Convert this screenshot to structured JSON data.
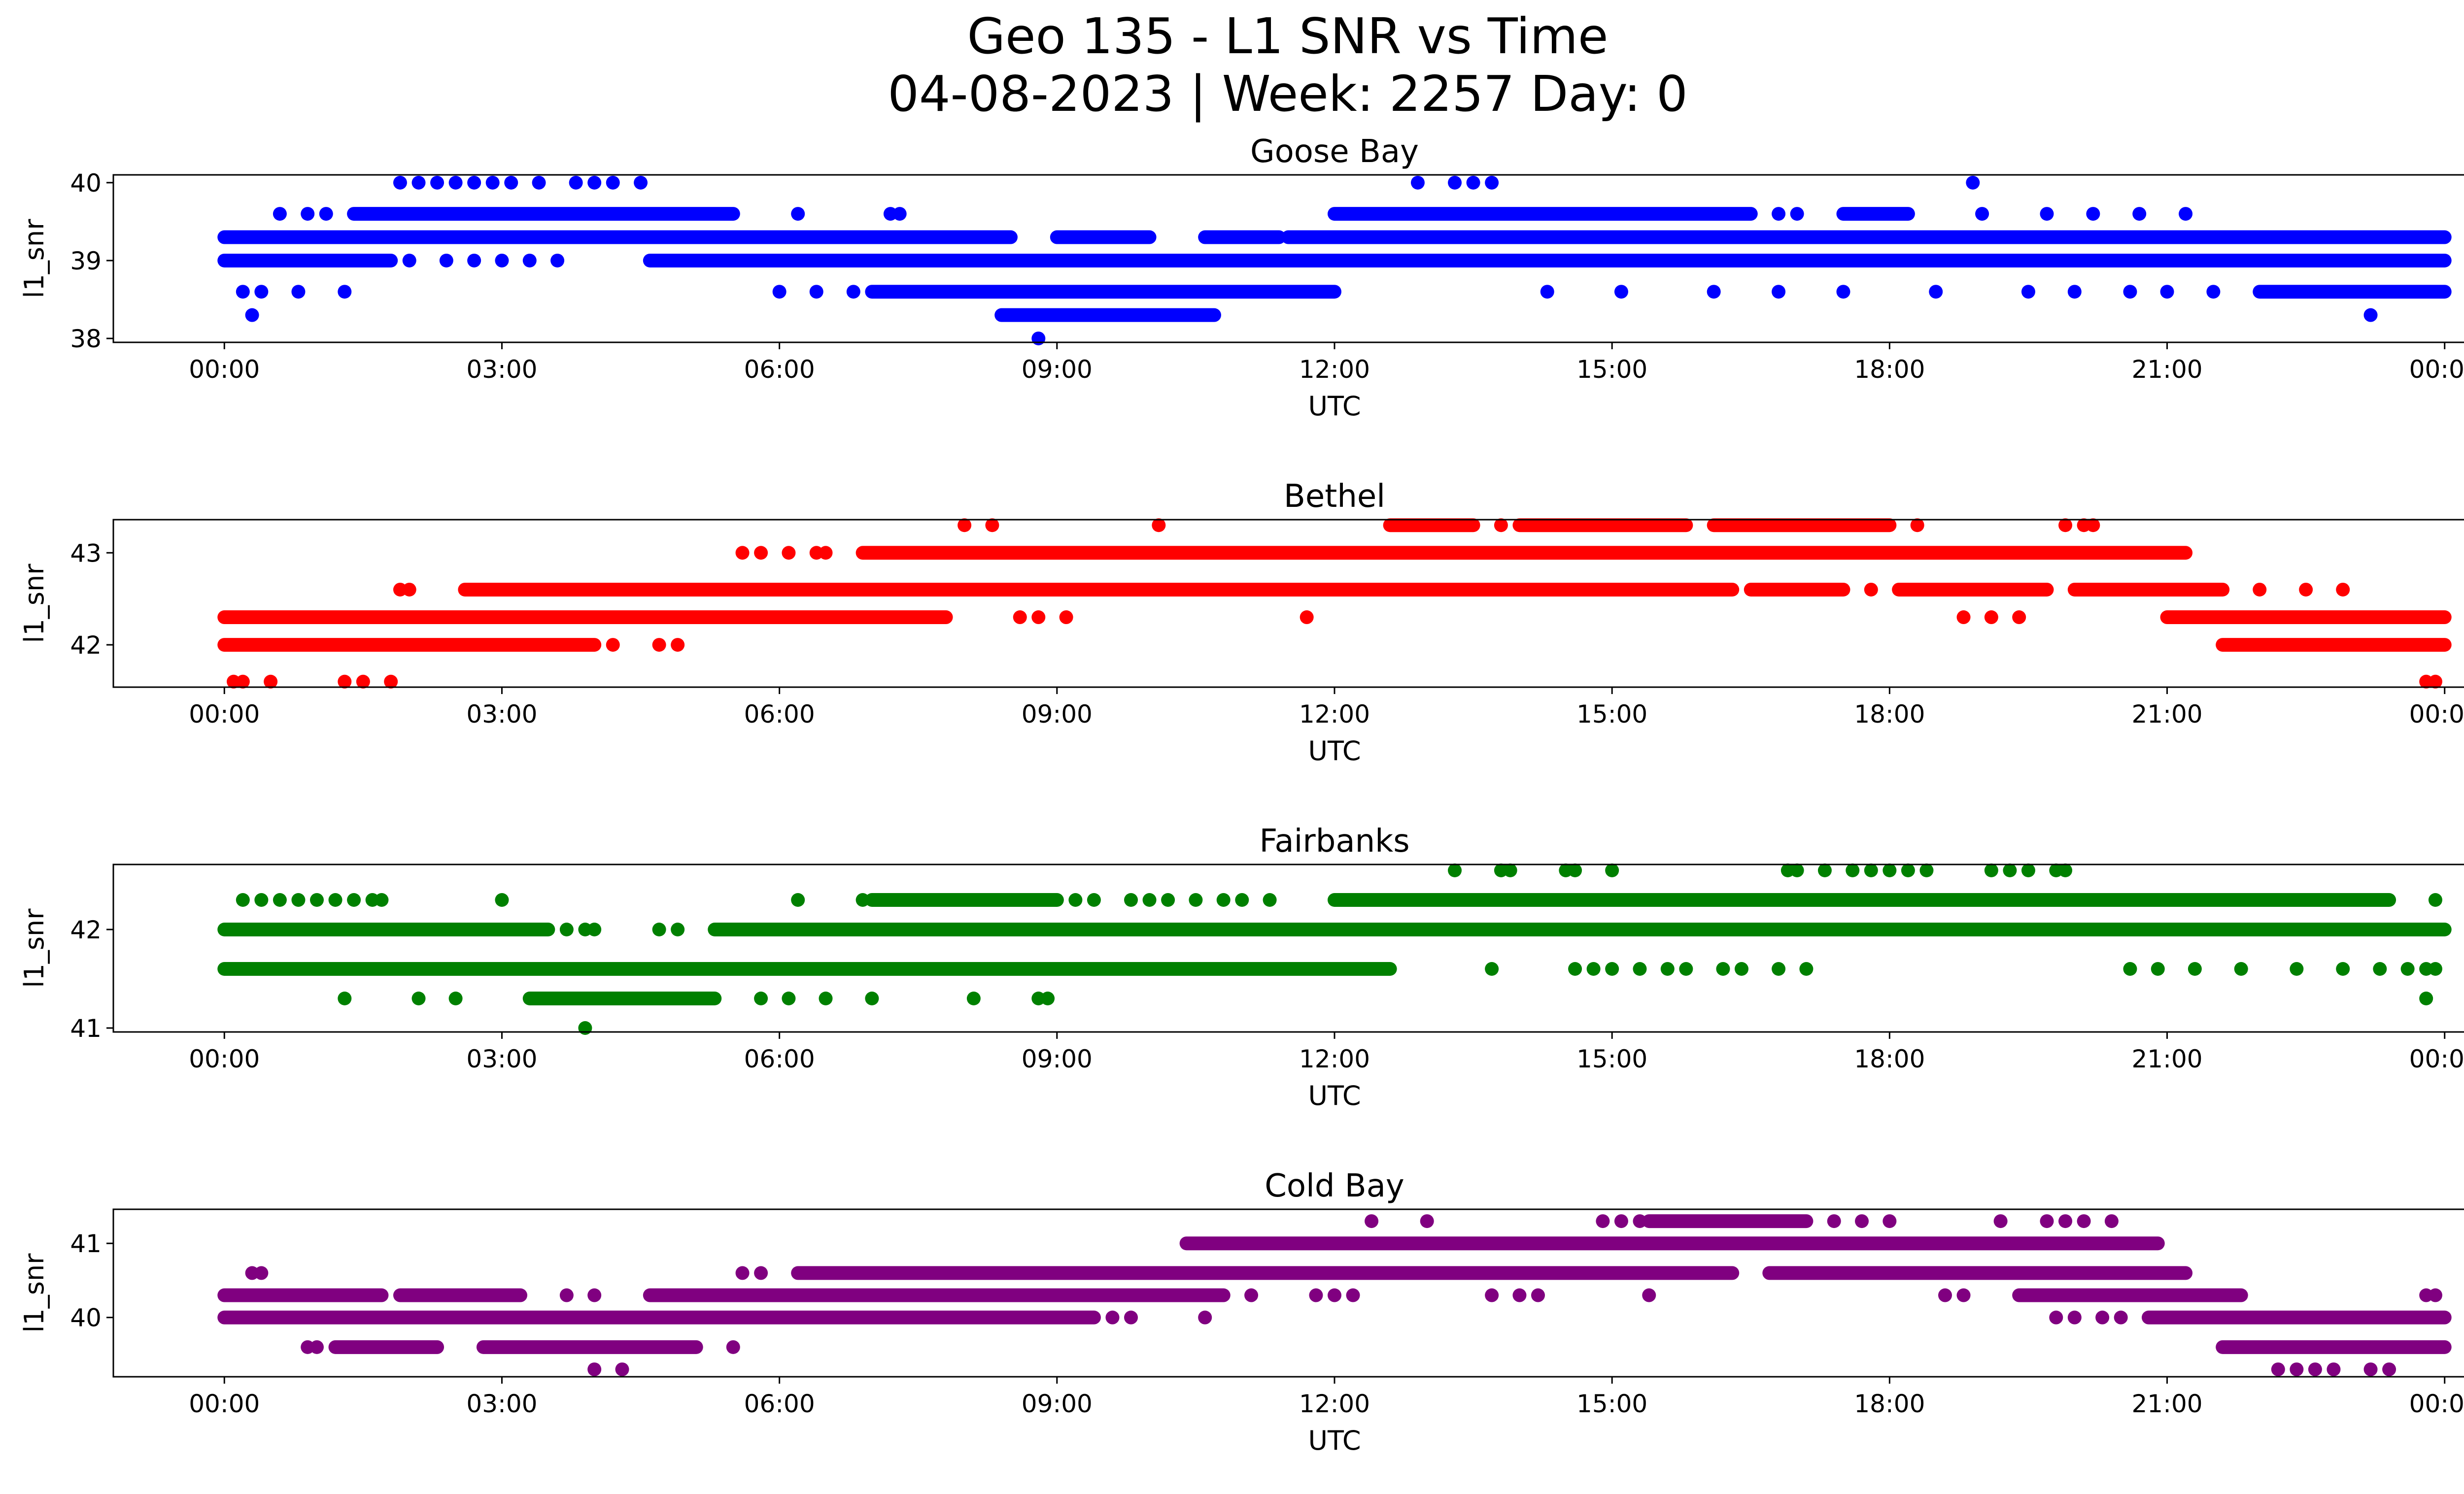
{
  "figure": {
    "title_line1": "Geo 135 - L1 SNR vs Time",
    "title_line2": "04-08-2023 | Week: 2257 Day: 0"
  },
  "chart_data": [
    {
      "type": "scatter",
      "title": "Goose Bay",
      "xlabel": "UTC",
      "ylabel": "l1_snr",
      "color": "#0000ff",
      "xlim": [
        -1.2,
        25.2
      ],
      "ylim": [
        37.95,
        40.1
      ],
      "yticks": [
        38,
        39,
        40
      ],
      "xticks": [
        0,
        3,
        6,
        9,
        12,
        15,
        18,
        21,
        24
      ],
      "xticklabels": [
        "00:00",
        "03:00",
        "06:00",
        "09:00",
        "12:00",
        "15:00",
        "18:00",
        "21:00",
        "00:00"
      ],
      "bands": [
        {
          "y": 39.3,
          "segments": [
            [
              0,
              8.5
            ],
            [
              9.0,
              10.0
            ],
            [
              10.6,
              11.4
            ],
            [
              11.5,
              24
            ]
          ]
        },
        {
          "y": 39.0,
          "segments": [
            [
              0,
              1.8
            ],
            [
              4.6,
              24
            ]
          ]
        },
        {
          "y": 38.6,
          "segments": [
            [
              7.0,
              12.0
            ],
            [
              22.0,
              24
            ]
          ]
        },
        {
          "y": 39.6,
          "segments": [
            [
              1.4,
              5.5
            ],
            [
              12.0,
              16.5
            ],
            [
              17.5,
              18.2
            ]
          ]
        },
        {
          "y": 38.3,
          "segments": [
            [
              8.4,
              10.7
            ]
          ]
        }
      ],
      "points": [
        [
          0.3,
          38.3
        ],
        [
          0.2,
          38.6
        ],
        [
          0.4,
          38.6
        ],
        [
          0.8,
          38.6
        ],
        [
          1.3,
          38.6
        ],
        [
          6.0,
          38.6
        ],
        [
          6.4,
          38.6
        ],
        [
          6.8,
          38.6
        ],
        [
          14.3,
          38.6
        ],
        [
          15.1,
          38.6
        ],
        [
          16.1,
          38.6
        ],
        [
          16.8,
          38.6
        ],
        [
          17.5,
          38.6
        ],
        [
          18.5,
          38.6
        ],
        [
          19.5,
          38.6
        ],
        [
          20.0,
          38.6
        ],
        [
          20.6,
          38.6
        ],
        [
          21.0,
          38.6
        ],
        [
          21.5,
          38.6
        ],
        [
          23.2,
          38.3
        ],
        [
          8.8,
          38.0
        ],
        [
          0.6,
          39.6
        ],
        [
          0.9,
          39.6
        ],
        [
          1.1,
          39.6
        ],
        [
          6.2,
          39.6
        ],
        [
          7.2,
          39.6
        ],
        [
          7.3,
          39.6
        ],
        [
          16.8,
          39.6
        ],
        [
          17.0,
          39.6
        ],
        [
          19.0,
          39.6
        ],
        [
          19.7,
          39.6
        ],
        [
          20.2,
          39.6
        ],
        [
          20.7,
          39.6
        ],
        [
          21.2,
          39.6
        ],
        [
          2.0,
          39.0
        ],
        [
          2.4,
          39.0
        ],
        [
          2.7,
          39.0
        ],
        [
          3.0,
          39.0
        ],
        [
          3.3,
          39.0
        ],
        [
          3.6,
          39.0
        ],
        [
          1.9,
          40.0
        ],
        [
          2.1,
          40.0
        ],
        [
          2.3,
          40.0
        ],
        [
          2.5,
          40.0
        ],
        [
          2.7,
          40.0
        ],
        [
          2.9,
          40.0
        ],
        [
          3.1,
          40.0
        ],
        [
          3.4,
          40.0
        ],
        [
          3.8,
          40.0
        ],
        [
          4.0,
          40.0
        ],
        [
          4.2,
          40.0
        ],
        [
          4.5,
          40.0
        ],
        [
          12.9,
          40.0
        ],
        [
          13.3,
          40.0
        ],
        [
          13.5,
          40.0
        ],
        [
          13.7,
          40.0
        ],
        [
          18.9,
          40.0
        ]
      ]
    },
    {
      "type": "scatter",
      "title": "Bethel",
      "xlabel": "UTC",
      "ylabel": "l1_snr",
      "color": "#ff0000",
      "xlim": [
        -1.2,
        25.2
      ],
      "ylim": [
        41.54,
        43.36
      ],
      "yticks": [
        42,
        43
      ],
      "xticks": [
        0,
        3,
        6,
        9,
        12,
        15,
        18,
        21,
        24
      ],
      "xticklabels": [
        "00:00",
        "03:00",
        "06:00",
        "09:00",
        "12:00",
        "15:00",
        "18:00",
        "21:00",
        "00:00"
      ],
      "bands": [
        {
          "y": 42.0,
          "segments": [
            [
              0,
              4.0
            ],
            [
              21.6,
              24
            ]
          ]
        },
        {
          "y": 42.3,
          "segments": [
            [
              0,
              7.8
            ],
            [
              21.0,
              24
            ]
          ]
        },
        {
          "y": 42.6,
          "segments": [
            [
              2.6,
              16.3
            ],
            [
              16.5,
              17.5
            ],
            [
              18.1,
              19.7
            ],
            [
              20.0,
              21.6
            ]
          ]
        },
        {
          "y": 43.0,
          "segments": [
            [
              6.9,
              21.2
            ]
          ]
        },
        {
          "y": 43.3,
          "segments": [
            [
              12.6,
              13.5
            ],
            [
              14.0,
              15.8
            ],
            [
              16.1,
              18.0
            ]
          ]
        }
      ],
      "points": [
        [
          0.1,
          41.6
        ],
        [
          0.2,
          41.6
        ],
        [
          0.5,
          41.6
        ],
        [
          1.3,
          41.6
        ],
        [
          1.5,
          41.6
        ],
        [
          1.8,
          41.6
        ],
        [
          23.8,
          41.6
        ],
        [
          23.9,
          41.6
        ],
        [
          4.2,
          42.0
        ],
        [
          4.7,
          42.0
        ],
        [
          4.9,
          42.0
        ],
        [
          8.6,
          42.3
        ],
        [
          8.8,
          42.3
        ],
        [
          9.1,
          42.3
        ],
        [
          11.7,
          42.3
        ],
        [
          18.8,
          42.3
        ],
        [
          19.1,
          42.3
        ],
        [
          19.4,
          42.3
        ],
        [
          1.9,
          42.6
        ],
        [
          2.0,
          42.6
        ],
        [
          17.8,
          42.6
        ],
        [
          22.0,
          42.6
        ],
        [
          22.5,
          42.6
        ],
        [
          22.9,
          42.6
        ],
        [
          5.6,
          43.0
        ],
        [
          5.8,
          43.0
        ],
        [
          6.1,
          43.0
        ],
        [
          6.4,
          43.0
        ],
        [
          6.5,
          43.0
        ],
        [
          8.0,
          43.3
        ],
        [
          8.3,
          43.3
        ],
        [
          10.1,
          43.3
        ],
        [
          13.8,
          43.3
        ],
        [
          18.3,
          43.3
        ],
        [
          19.9,
          43.3
        ],
        [
          20.1,
          43.3
        ],
        [
          20.2,
          43.3
        ]
      ]
    },
    {
      "type": "scatter",
      "title": "Fairbanks",
      "xlabel": "UTC",
      "ylabel": "l1_snr",
      "color": "#008000",
      "xlim": [
        -1.2,
        25.2
      ],
      "ylim": [
        40.96,
        42.66
      ],
      "yticks": [
        41,
        42
      ],
      "xticks": [
        0,
        3,
        6,
        9,
        12,
        15,
        18,
        21,
        24
      ],
      "xticklabels": [
        "00:00",
        "03:00",
        "06:00",
        "09:00",
        "12:00",
        "15:00",
        "18:00",
        "21:00",
        "00:00"
      ],
      "bands": [
        {
          "y": 42.0,
          "segments": [
            [
              0,
              3.5
            ],
            [
              5.3,
              24
            ]
          ]
        },
        {
          "y": 41.6,
          "segments": [
            [
              0,
              12.6
            ]
          ]
        },
        {
          "y": 42.3,
          "segments": [
            [
              7.0,
              9.0
            ],
            [
              12.0,
              23.4
            ]
          ]
        },
        {
          "y": 41.3,
          "segments": [
            [
              3.3,
              5.3
            ]
          ]
        }
      ],
      "points": [
        [
          0.2,
          42.3
        ],
        [
          0.4,
          42.3
        ],
        [
          0.6,
          42.3
        ],
        [
          0.8,
          42.3
        ],
        [
          1.0,
          42.3
        ],
        [
          1.2,
          42.3
        ],
        [
          1.4,
          42.3
        ],
        [
          1.6,
          42.3
        ],
        [
          1.7,
          42.3
        ],
        [
          3.0,
          42.3
        ],
        [
          6.2,
          42.3
        ],
        [
          6.9,
          42.3
        ],
        [
          9.2,
          42.3
        ],
        [
          9.4,
          42.3
        ],
        [
          9.8,
          42.3
        ],
        [
          10.0,
          42.3
        ],
        [
          10.2,
          42.3
        ],
        [
          10.5,
          42.3
        ],
        [
          10.8,
          42.3
        ],
        [
          11.0,
          42.3
        ],
        [
          11.3,
          42.3
        ],
        [
          23.9,
          42.3
        ],
        [
          13.3,
          42.6
        ],
        [
          13.8,
          42.6
        ],
        [
          13.9,
          42.6
        ],
        [
          14.5,
          42.6
        ],
        [
          14.6,
          42.6
        ],
        [
          15.0,
          42.6
        ],
        [
          16.9,
          42.6
        ],
        [
          17.0,
          42.6
        ],
        [
          17.3,
          42.6
        ],
        [
          17.6,
          42.6
        ],
        [
          17.8,
          42.6
        ],
        [
          18.0,
          42.6
        ],
        [
          18.2,
          42.6
        ],
        [
          18.4,
          42.6
        ],
        [
          19.1,
          42.6
        ],
        [
          19.3,
          42.6
        ],
        [
          19.5,
          42.6
        ],
        [
          19.8,
          42.6
        ],
        [
          19.9,
          42.6
        ],
        [
          3.7,
          42.0
        ],
        [
          3.9,
          42.0
        ],
        [
          4.0,
          42.0
        ],
        [
          4.7,
          42.0
        ],
        [
          4.9,
          42.0
        ],
        [
          13.7,
          41.6
        ],
        [
          14.6,
          41.6
        ],
        [
          14.8,
          41.6
        ],
        [
          15.0,
          41.6
        ],
        [
          15.3,
          41.6
        ],
        [
          15.6,
          41.6
        ],
        [
          15.8,
          41.6
        ],
        [
          16.2,
          41.6
        ],
        [
          16.4,
          41.6
        ],
        [
          16.8,
          41.6
        ],
        [
          17.1,
          41.6
        ],
        [
          20.6,
          41.6
        ],
        [
          20.9,
          41.6
        ],
        [
          21.3,
          41.6
        ],
        [
          21.8,
          41.6
        ],
        [
          22.4,
          41.6
        ],
        [
          22.9,
          41.6
        ],
        [
          23.3,
          41.6
        ],
        [
          23.6,
          41.6
        ],
        [
          23.8,
          41.6
        ],
        [
          23.9,
          41.6
        ],
        [
          1.3,
          41.3
        ],
        [
          2.1,
          41.3
        ],
        [
          2.5,
          41.3
        ],
        [
          5.8,
          41.3
        ],
        [
          6.1,
          41.3
        ],
        [
          6.5,
          41.3
        ],
        [
          7.0,
          41.3
        ],
        [
          8.1,
          41.3
        ],
        [
          8.8,
          41.3
        ],
        [
          8.9,
          41.3
        ],
        [
          23.8,
          41.3
        ],
        [
          3.9,
          41.0
        ]
      ]
    },
    {
      "type": "scatter",
      "title": "Cold Bay",
      "xlabel": "UTC",
      "ylabel": "l1_snr",
      "color": "#800080",
      "xlim": [
        -1.2,
        25.2
      ],
      "ylim": [
        39.2,
        41.46
      ],
      "yticks": [
        40,
        41
      ],
      "xticks": [
        0,
        3,
        6,
        9,
        12,
        15,
        18,
        21,
        24
      ],
      "xticklabels": [
        "00:00",
        "03:00",
        "06:00",
        "09:00",
        "12:00",
        "15:00",
        "18:00",
        "21:00",
        "00:00"
      ],
      "bands": [
        {
          "y": 40.0,
          "segments": [
            [
              0,
              9.4
            ],
            [
              20.8,
              24
            ]
          ]
        },
        {
          "y": 40.3,
          "segments": [
            [
              0,
              1.7
            ],
            [
              1.9,
              3.2
            ],
            [
              4.6,
              10.8
            ],
            [
              19.4,
              21.8
            ]
          ]
        },
        {
          "y": 40.6,
          "segments": [
            [
              6.2,
              16.3
            ],
            [
              16.7,
              21.2
            ]
          ]
        },
        {
          "y": 41.0,
          "segments": [
            [
              10.4,
              20.9
            ]
          ]
        },
        {
          "y": 39.6,
          "segments": [
            [
              1.2,
              2.3
            ],
            [
              2.8,
              5.1
            ],
            [
              21.6,
              24
            ]
          ]
        },
        {
          "y": 41.3,
          "segments": [
            [
              15.4,
              17.1
            ]
          ]
        }
      ],
      "points": [
        [
          0.3,
          40.6
        ],
        [
          0.4,
          40.6
        ],
        [
          0.9,
          39.6
        ],
        [
          1.0,
          39.6
        ],
        [
          5.5,
          39.6
        ],
        [
          3.7,
          40.3
        ],
        [
          4.0,
          40.3
        ],
        [
          9.6,
          40.0
        ],
        [
          9.8,
          40.0
        ],
        [
          10.6,
          40.0
        ],
        [
          5.6,
          40.6
        ],
        [
          5.8,
          40.6
        ],
        [
          11.1,
          40.3
        ],
        [
          11.8,
          40.3
        ],
        [
          12.0,
          40.3
        ],
        [
          12.2,
          40.3
        ],
        [
          13.7,
          40.3
        ],
        [
          14.0,
          40.3
        ],
        [
          14.2,
          40.3
        ],
        [
          15.4,
          40.3
        ],
        [
          18.6,
          40.3
        ],
        [
          18.8,
          40.3
        ],
        [
          19.8,
          40.0
        ],
        [
          20.0,
          40.0
        ],
        [
          20.3,
          40.0
        ],
        [
          20.5,
          40.0
        ],
        [
          23.8,
          40.3
        ],
        [
          23.9,
          40.3
        ],
        [
          4.0,
          39.3
        ],
        [
          4.3,
          39.3
        ],
        [
          22.2,
          39.3
        ],
        [
          22.4,
          39.3
        ],
        [
          22.6,
          39.3
        ],
        [
          22.8,
          39.3
        ],
        [
          23.2,
          39.3
        ],
        [
          23.4,
          39.3
        ],
        [
          12.4,
          41.3
        ],
        [
          13.0,
          41.3
        ],
        [
          14.9,
          41.3
        ],
        [
          15.1,
          41.3
        ],
        [
          15.3,
          41.3
        ],
        [
          17.4,
          41.3
        ],
        [
          17.7,
          41.3
        ],
        [
          18.0,
          41.3
        ],
        [
          19.2,
          41.3
        ],
        [
          19.7,
          41.3
        ],
        [
          19.9,
          41.3
        ],
        [
          20.1,
          41.3
        ],
        [
          20.4,
          41.3
        ]
      ]
    }
  ]
}
